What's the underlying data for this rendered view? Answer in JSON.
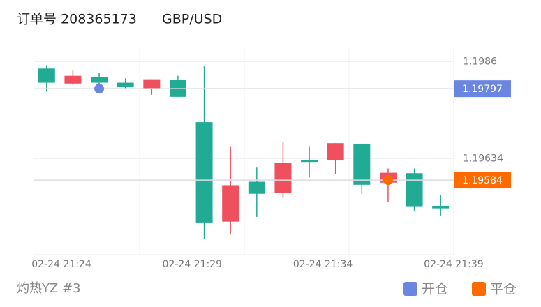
{
  "chart_data": {
    "type": "candlestick",
    "title": "订单号 208365173",
    "subtitle": "GBP/USD",
    "footer": "灼热YZ #3",
    "up_color": "#22ab94",
    "down_color": "#f0505e",
    "open": [
      1.19811,
      1.19827,
      1.19811,
      1.19801,
      1.19819,
      1.19778,
      1.19485,
      1.19572,
      1.19552,
      1.19624,
      1.19627,
      1.1967,
      1.19573,
      1.19601,
      1.19523,
      1.19518
    ],
    "high": [
      1.19852,
      1.1984,
      1.19834,
      1.19821,
      1.19819,
      1.19827,
      1.19849,
      1.19663,
      1.19613,
      1.19673,
      1.19663,
      1.1967,
      1.19668,
      1.19611,
      1.19611,
      1.1955
    ],
    "low": [
      1.1979,
      1.19806,
      1.19803,
      1.19796,
      1.19783,
      1.19778,
      1.19447,
      1.19457,
      1.19498,
      1.19542,
      1.1959,
      1.19598,
      1.19552,
      1.19532,
      1.19511,
      1.19501
    ],
    "close": [
      1.19844,
      1.19809,
      1.19824,
      1.19811,
      1.19798,
      1.19817,
      1.19719,
      1.19487,
      1.1958,
      1.19554,
      1.19631,
      1.19631,
      1.19668,
      1.19578,
      1.196,
      1.19524
    ],
    "xticks": [
      "02-24 21:24",
      "02-24 21:29",
      "02-24 21:34",
      "02-24 21:39"
    ],
    "ylim": [
      1.1941,
      1.1989
    ],
    "yticks": [
      1.19634,
      1.1986
    ],
    "markers": [
      {
        "name": "开仓",
        "color": "#6b86e1",
        "candle": 2,
        "value": 1.19797
      },
      {
        "name": "平仓",
        "color": "#ff6a00",
        "candle": 13,
        "value": 1.19584
      }
    ]
  }
}
